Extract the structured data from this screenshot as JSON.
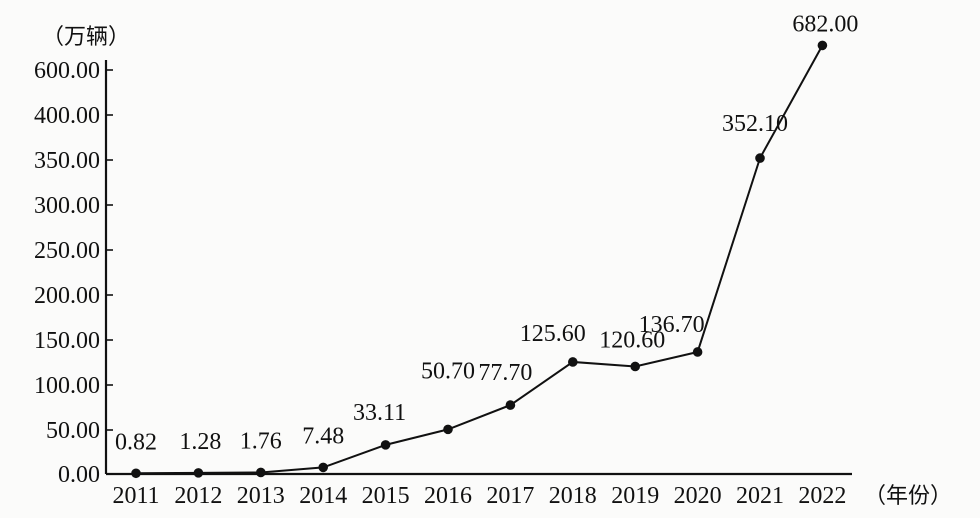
{
  "chart_data": {
    "type": "line",
    "title": "",
    "xlabel": "（年份）",
    "ylabel": "（万辆）",
    "categories": [
      "2011",
      "2012",
      "2013",
      "2014",
      "2015",
      "2016",
      "2017",
      "2018",
      "2019",
      "2020",
      "2021",
      "2022"
    ],
    "series": [
      {
        "values": [
          0.82,
          1.28,
          1.76,
          7.48,
          33.11,
          50.7,
          77.7,
          125.6,
          120.6,
          136.7,
          352.1,
          682.0
        ],
        "labels": [
          "0.82",
          "1.28",
          "1.76",
          "7.48",
          "33.11",
          "50.70",
          "77.70",
          "125.60",
          "120.60",
          "136.70",
          "352.10",
          "682.00"
        ]
      }
    ],
    "y_ticks": [
      {
        "value": 0,
        "label": "0.00"
      },
      {
        "value": 50,
        "label": "50.00"
      },
      {
        "value": 100,
        "label": "100.00"
      },
      {
        "value": 150,
        "label": "150.00"
      },
      {
        "value": 200,
        "label": "200.00"
      },
      {
        "value": 250,
        "label": "250.00"
      },
      {
        "value": 300,
        "label": "300.00"
      },
      {
        "value": 350,
        "label": "350.00"
      },
      {
        "value": 400,
        "label": "400.00"
      },
      {
        "value": 600,
        "label": "600.00"
      }
    ],
    "y_axis_scale": "broken",
    "ylim": [
      0,
      700
    ],
    "grid": false,
    "colors": {
      "line": "#111111",
      "marker": "#111111",
      "background": "#fbfbfa"
    }
  }
}
